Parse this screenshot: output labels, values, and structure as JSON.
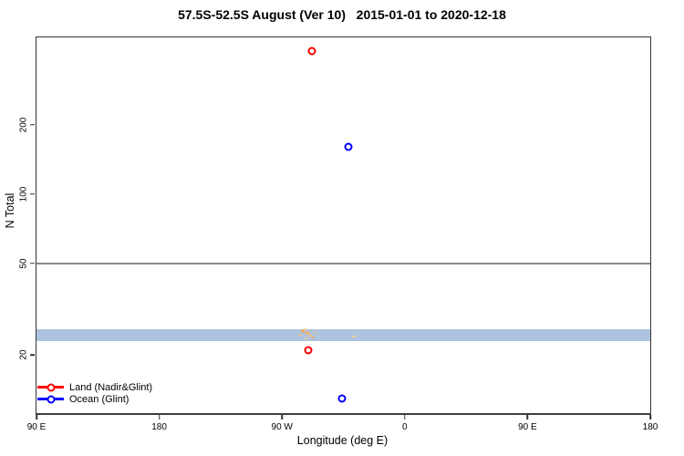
{
  "title": "57.5S-52.5S August (Ver 10)   2015-01-01 to 2020-12-18",
  "chart_data": {
    "type": "scatter",
    "title": "57.5S-52.5S August (Ver 10)   2015-01-01 to 2020-12-18",
    "xlabel": "Longitude (deg E)",
    "ylabel": "N Total",
    "x_axis_note": "longitude increases eastward from 90E and wraps through 180, 90W, 0 back to 180",
    "xlim": [
      90,
      540
    ],
    "y_scale": "log",
    "ylim": [
      11.2,
      480
    ],
    "grid": "off",
    "legend_position": "bottom-left inside plot",
    "x_ticks": [
      {
        "value": 90,
        "label": "90 E"
      },
      {
        "value": 180,
        "label": "180"
      },
      {
        "value": 270,
        "label": "90 W"
      },
      {
        "value": 360,
        "label": "0"
      },
      {
        "value": 450,
        "label": "90 E"
      },
      {
        "value": 540,
        "label": "180"
      }
    ],
    "y_ticks": [
      {
        "value": 20,
        "label": "20"
      },
      {
        "value": 50,
        "label": "50"
      },
      {
        "value": 100,
        "label": "100"
      },
      {
        "value": 200,
        "label": "200"
      }
    ],
    "reference_line": {
      "y": 50,
      "color": "#8a8a8a"
    },
    "band": {
      "n_min": 23,
      "n_max": 26,
      "color": "#aec3e0"
    },
    "series": [
      {
        "name": "Land (Nadir&Glint)",
        "color": "#ff0000",
        "marker": "open-circle",
        "points": [
          {
            "lon_axis": 292,
            "n": 420
          },
          {
            "lon_axis": 289,
            "n": 21
          }
        ]
      },
      {
        "name": "Ocean (Glint)",
        "color": "#0000ff",
        "marker": "open-circle",
        "points": [
          {
            "lon_axis": 319,
            "n": 160
          },
          {
            "lon_axis": 314,
            "n": 13
          }
        ]
      }
    ],
    "minor_marks": [
      {
        "lon_axis": 283.3,
        "n": 24.5,
        "w": 3,
        "h": 2,
        "color": "#f2c178"
      },
      {
        "lon_axis": 285.3,
        "n": 25.5,
        "w": 4,
        "h": 3,
        "color": "#eda95f"
      },
      {
        "lon_axis": 287.3,
        "n": 25.9,
        "w": 3,
        "h": 2,
        "color": "#f6d089"
      },
      {
        "lon_axis": 288.6,
        "n": 25.0,
        "w": 5,
        "h": 3,
        "color": "#f0b36a"
      },
      {
        "lon_axis": 288.0,
        "n": 23.7,
        "w": 3,
        "h": 2,
        "color": "#f6d089"
      },
      {
        "lon_axis": 290.6,
        "n": 24.3,
        "w": 4,
        "h": 2,
        "color": "#f2c178"
      },
      {
        "lon_axis": 292.6,
        "n": 23.9,
        "w": 3,
        "h": 2,
        "color": "#eda95f"
      },
      {
        "lon_axis": 294.0,
        "n": 25.2,
        "w": 2,
        "h": 2,
        "color": "#f0b36a"
      },
      {
        "lon_axis": 296.0,
        "n": 24.8,
        "w": 2,
        "h": 1,
        "color": "#f2c178"
      },
      {
        "lon_axis": 322.7,
        "n": 24.1,
        "w": 4,
        "h": 2,
        "color": "#f6d089"
      }
    ],
    "legend": {
      "entries": [
        {
          "label": "Land (Nadir&Glint)",
          "color": "#ff0000"
        },
        {
          "label": "Ocean (Glint)",
          "color": "#0000ff"
        }
      ]
    }
  }
}
